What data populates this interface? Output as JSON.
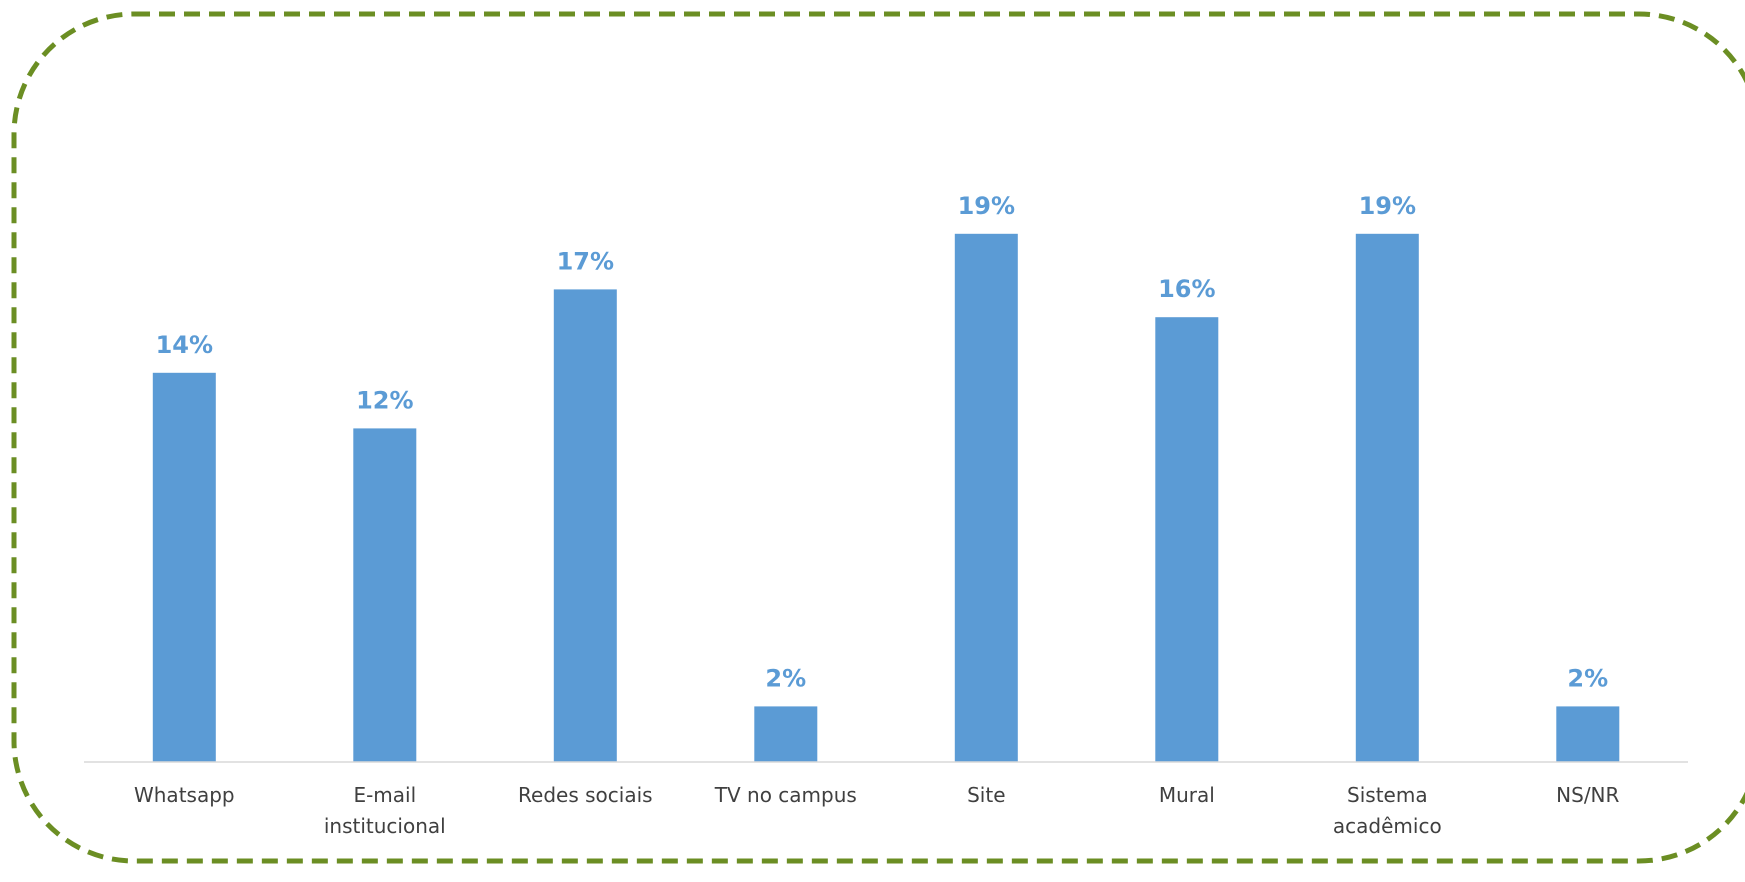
{
  "colors": {
    "bar": "#5b9bd5",
    "value_label": "#5b9bd5",
    "border": "#6b8e23",
    "axis": "#d9d9d9",
    "category_text": "#404040"
  },
  "chart_data": {
    "type": "bar",
    "categories": [
      [
        "Whatsapp"
      ],
      [
        "E-mail",
        "institucional"
      ],
      [
        "Redes sociais"
      ],
      [
        "TV no campus"
      ],
      [
        "Site"
      ],
      [
        "Mural"
      ],
      [
        "Sistema",
        "acadêmico"
      ],
      [
        "NS/NR"
      ]
    ],
    "values": [
      14,
      12,
      17,
      2,
      19,
      16,
      19,
      2
    ],
    "value_labels": [
      "14%",
      "12%",
      "17%",
      "2%",
      "19%",
      "16%",
      "19%",
      "2%"
    ],
    "unit": "%",
    "ylim": [
      0,
      20
    ],
    "grid": false,
    "legend": "none"
  }
}
